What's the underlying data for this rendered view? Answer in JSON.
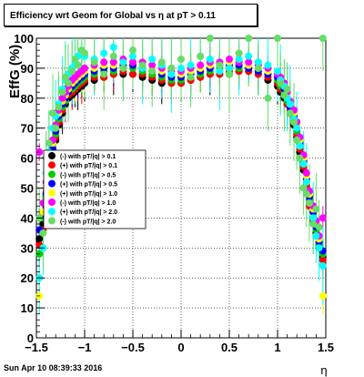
{
  "title": "Efficiency wrt Geom for Global vs  η at pT > 0.11",
  "footer_date": "Sun Apr 10 08:39:33 2016",
  "chart_data": {
    "type": "scatter",
    "title": "Efficiency wrt Geom for Global vs  η at pT > 0.11",
    "xlabel": "η",
    "ylabel": "EffG (%)",
    "xlim": [
      -1.5,
      1.5
    ],
    "ylim": [
      0,
      100
    ],
    "xticks": [
      -1.5,
      -1,
      -0.5,
      0,
      0.5,
      1,
      1.5
    ],
    "xtick_labels": [
      "−1.5",
      "−1",
      "−0.5",
      "0",
      "0.5",
      "1",
      "1.5"
    ],
    "yticks": [
      0,
      10,
      20,
      30,
      40,
      50,
      60,
      70,
      80,
      90,
      100
    ],
    "ytick_labels": [
      "0",
      "10",
      "20",
      "30",
      "40",
      "50",
      "60",
      "70",
      "80",
      "90",
      "100"
    ],
    "grid": true,
    "legend_position": "middle-left",
    "x": [
      -1.47,
      -1.43,
      -1.4,
      -1.37,
      -1.33,
      -1.3,
      -1.27,
      -1.23,
      -1.2,
      -1.17,
      -1.13,
      -1.1,
      -1.07,
      -1.03,
      -1.0,
      -0.9,
      -0.8,
      -0.7,
      -0.6,
      -0.5,
      -0.4,
      -0.3,
      -0.2,
      -0.1,
      0.0,
      0.1,
      0.2,
      0.3,
      0.4,
      0.5,
      0.6,
      0.7,
      0.8,
      0.9,
      1.0,
      1.03,
      1.07,
      1.1,
      1.13,
      1.17,
      1.2,
      1.23,
      1.27,
      1.3,
      1.33,
      1.37,
      1.4,
      1.43,
      1.47
    ],
    "series": [
      {
        "name": "(-) with pT/|q| > 0.1",
        "color": "#000000",
        "values": [
          33,
          38,
          44,
          52,
          60,
          66,
          71,
          75,
          78,
          80,
          81,
          82,
          83,
          84,
          85,
          86,
          87,
          88,
          88,
          88,
          87,
          86,
          85,
          85,
          85,
          86,
          87,
          88,
          88,
          88,
          89,
          89,
          88,
          86,
          84,
          82,
          80,
          78,
          75,
          71,
          67,
          62,
          56,
          50,
          45,
          40,
          35,
          31,
          27
        ]
      },
      {
        "name": "(+) with pT/|q| > 0.1",
        "color": "#ff0000",
        "values": [
          31,
          36,
          45,
          53,
          61,
          67,
          72,
          76,
          79,
          81,
          82,
          83,
          84,
          85,
          86,
          87,
          87,
          88,
          89,
          88,
          88,
          87,
          86,
          85,
          85,
          86,
          87,
          88,
          88,
          89,
          89,
          89,
          88,
          87,
          85,
          83,
          81,
          78,
          76,
          72,
          68,
          63,
          57,
          51,
          44,
          39,
          34,
          30,
          26
        ]
      },
      {
        "name": "(-) with pT/|q| > 0.5",
        "color": "#00cc00",
        "values": [
          28,
          40,
          47,
          55,
          62,
          68,
          73,
          77,
          79,
          82,
          83,
          84,
          85,
          86,
          87,
          88,
          89,
          89,
          90,
          90,
          89,
          88,
          87,
          86,
          86,
          87,
          88,
          89,
          90,
          90,
          90,
          90,
          89,
          88,
          86,
          84,
          82,
          79,
          77,
          73,
          69,
          64,
          58,
          52,
          46,
          40,
          36,
          31,
          28
        ]
      },
      {
        "name": "(+) with pT/|q| > 0.5",
        "color": "#0000ff",
        "values": [
          36,
          41,
          48,
          56,
          63,
          69,
          74,
          78,
          80,
          82,
          84,
          85,
          86,
          87,
          88,
          89,
          90,
          90,
          91,
          91,
          90,
          89,
          88,
          87,
          87,
          88,
          89,
          90,
          91,
          91,
          91,
          90,
          89,
          88,
          87,
          85,
          83,
          80,
          77,
          74,
          70,
          65,
          59,
          53,
          47,
          42,
          37,
          32,
          29
        ]
      },
      {
        "name": "(+) with pT/|q| > 1.0",
        "color": "#ffff00",
        "values": [
          14,
          42,
          50,
          58,
          65,
          70,
          75,
          79,
          81,
          83,
          85,
          86,
          87,
          88,
          89,
          90,
          91,
          91,
          92,
          92,
          91,
          90,
          89,
          88,
          88,
          89,
          90,
          91,
          92,
          92,
          92,
          91,
          90,
          89,
          88,
          86,
          84,
          81,
          78,
          75,
          71,
          66,
          60,
          54,
          48,
          43,
          38,
          33,
          14
        ]
      },
      {
        "name": "(-) with pT/|q| > 1.0",
        "color": "#ff00ff",
        "values": [
          62,
          45,
          52,
          60,
          66,
          71,
          76,
          80,
          82,
          84,
          86,
          87,
          88,
          89,
          90,
          91,
          92,
          92,
          93,
          92,
          92,
          91,
          90,
          89,
          89,
          90,
          91,
          92,
          92,
          93,
          92,
          92,
          91,
          90,
          88,
          87,
          85,
          82,
          79,
          76,
          72,
          67,
          61,
          55,
          49,
          44,
          39,
          34,
          40
        ]
      },
      {
        "name": "(+) with pT/|q| > 2.0",
        "color": "#00ffff",
        "values": [
          20,
          30,
          55,
          62,
          70,
          74,
          78,
          83,
          86,
          88,
          90,
          92,
          94,
          96,
          94,
          93,
          95,
          97,
          92,
          94,
          90,
          93,
          91,
          88,
          90,
          91,
          94,
          93,
          89,
          90,
          93,
          94,
          92,
          91,
          89,
          86,
          84,
          80,
          78,
          73,
          70,
          64,
          58,
          52,
          45,
          40,
          34,
          30,
          24
        ]
      },
      {
        "name": "(-) with pT/|q| > 2.0",
        "color": "#66dd66",
        "values": [
          40,
          35,
          60,
          65,
          75,
          70,
          77,
          82,
          87,
          85,
          89,
          93,
          91,
          96,
          95,
          92,
          88,
          94,
          90,
          96,
          91,
          89,
          92,
          90,
          93,
          87,
          94,
          100,
          91,
          88,
          95,
          100,
          90,
          80,
          100,
          85,
          81,
          83,
          75,
          72,
          66,
          60,
          50,
          48,
          45,
          38,
          43,
          37,
          100
        ]
      }
    ]
  }
}
